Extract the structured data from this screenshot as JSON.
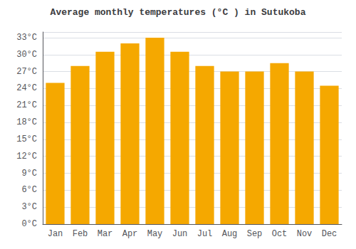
{
  "chart_data": {
    "type": "bar",
    "title": "Average monthly temperatures (°C ) in Sutukoba",
    "categories": [
      "Jan",
      "Feb",
      "Mar",
      "Apr",
      "May",
      "Jun",
      "Jul",
      "Aug",
      "Sep",
      "Oct",
      "Nov",
      "Dec"
    ],
    "values": [
      25.0,
      28.0,
      30.5,
      32.0,
      33.0,
      30.5,
      28.0,
      27.0,
      27.0,
      28.5,
      27.0,
      24.5
    ],
    "color": "#F5A800",
    "ylim": [
      0,
      34
    ],
    "yticks": [
      {
        "value": 0,
        "label": "0°C"
      },
      {
        "value": 3,
        "label": "3°C"
      },
      {
        "value": 6,
        "label": "6°C"
      },
      {
        "value": 9,
        "label": "9°C"
      },
      {
        "value": 12,
        "label": "12°C"
      },
      {
        "value": 15,
        "label": "15°C"
      },
      {
        "value": 18,
        "label": "18°C"
      },
      {
        "value": 21,
        "label": "21°C"
      },
      {
        "value": 24,
        "label": "24°C"
      },
      {
        "value": 27,
        "label": "27°C"
      },
      {
        "value": 30,
        "label": "30°C"
      },
      {
        "value": 33,
        "label": "33°C"
      }
    ],
    "grid": true
  }
}
